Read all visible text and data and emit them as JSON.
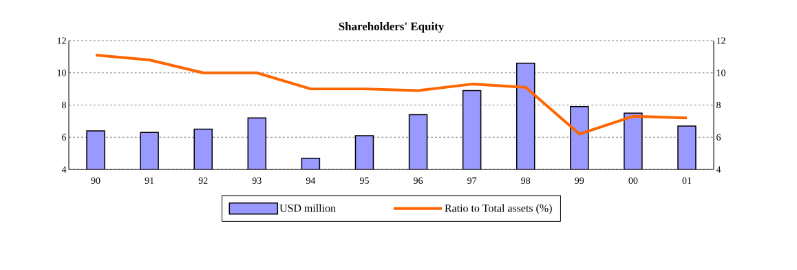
{
  "chart_data": {
    "type": "bar",
    "title": "Shareholders' Equity",
    "categories": [
      "90",
      "91",
      "92",
      "93",
      "94",
      "95",
      "96",
      "97",
      "98",
      "99",
      "00",
      "01"
    ],
    "series": [
      {
        "name": "USD million",
        "color": "#9999ff",
        "values": [
          6.4,
          6.3,
          6.5,
          7.2,
          4.7,
          6.1,
          7.4,
          8.9,
          10.6,
          7.9,
          7.5,
          6.7
        ]
      },
      {
        "name": "Ratio to Total assets (%)",
        "type": "line",
        "axis": "y2",
        "color": "#ff6600",
        "values": [
          11.1,
          10.8,
          10.0,
          10.0,
          9.0,
          9.0,
          8.9,
          9.3,
          9.1,
          6.2,
          7.3,
          7.2
        ]
      }
    ],
    "ylim": [
      4,
      12
    ],
    "yticks": [
      4,
      6,
      8,
      10,
      12
    ],
    "y2lim": [
      4,
      12
    ],
    "y2ticks": [
      4,
      6,
      8,
      10,
      12
    ],
    "grid": "y",
    "legend": "bottom",
    "marker": "none",
    "line_style": "solid"
  }
}
